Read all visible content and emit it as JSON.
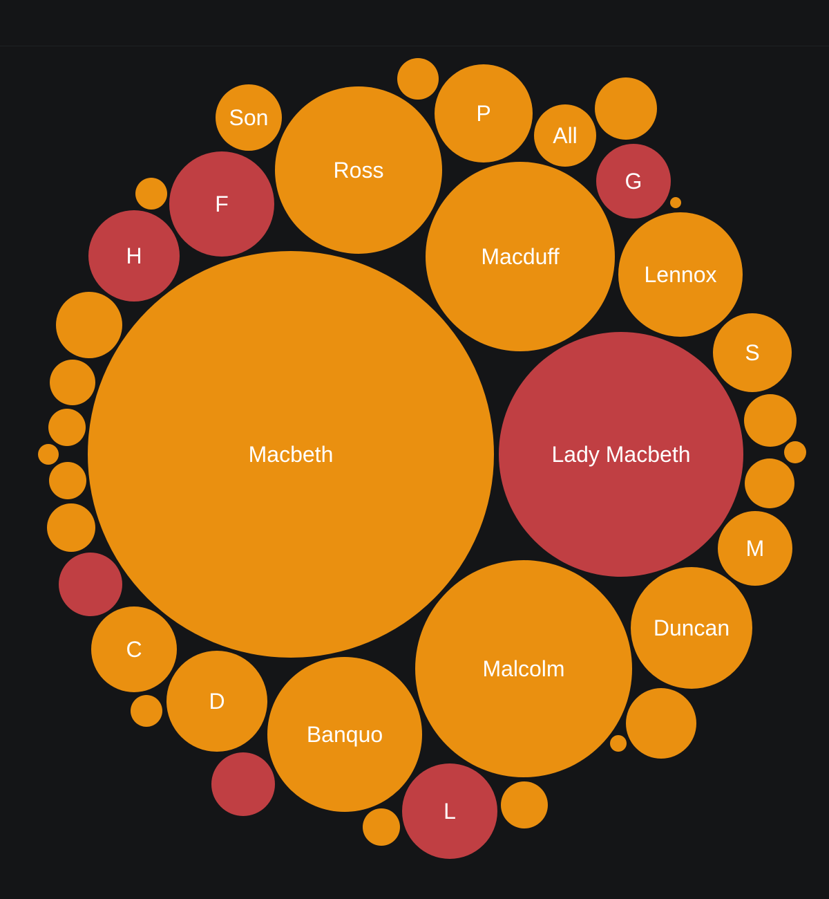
{
  "colors": {
    "background": "#141517",
    "female": "#c03f43",
    "male": "#ea9010",
    "label": "#ffffff"
  },
  "chart_data": {
    "type": "packed-bubble",
    "title": "",
    "items": [
      {
        "label": "Macbeth",
        "group": "male",
        "value": 100
      },
      {
        "label": "Lady Macbeth",
        "group": "female",
        "value": 36
      },
      {
        "label": "Malcolm",
        "group": "male",
        "value": 28
      },
      {
        "label": "Macduff",
        "group": "male",
        "value": 21.5
      },
      {
        "label": "Ross",
        "group": "male",
        "value": 16.7
      },
      {
        "label": "Banquo",
        "group": "male",
        "value": 14.5
      },
      {
        "label": "Lennox",
        "group": "male",
        "value": 9.4
      },
      {
        "label": "Duncan",
        "group": "male",
        "value": 8.8
      },
      {
        "label": "L",
        "group": "female",
        "value": 5.4
      },
      {
        "label": "F",
        "group": "female",
        "value": 6.5
      },
      {
        "label": "D",
        "group": "male",
        "value": 6.0
      },
      {
        "label": "P",
        "group": "male",
        "value": 5.8
      },
      {
        "label": "H",
        "group": "female",
        "value": 5.0
      },
      {
        "label": "C",
        "group": "male",
        "value": 4.4
      },
      {
        "label": "G",
        "group": "female",
        "value": 3.3
      },
      {
        "label": "S",
        "group": "male",
        "value": 3.7
      },
      {
        "label": "M",
        "group": "male",
        "value": 3.4
      },
      {
        "label": "Son",
        "group": "male",
        "value": 2.7
      },
      {
        "label": "All",
        "group": "male",
        "value": 2.3
      },
      {
        "label": "",
        "group": "male",
        "value": 2.9
      },
      {
        "label": "",
        "group": "male",
        "value": 3.0
      },
      {
        "label": "",
        "group": "female",
        "value": 2.4
      },
      {
        "label": "",
        "group": "female",
        "value": 2.4
      },
      {
        "label": "",
        "group": "male",
        "value": 2.6
      },
      {
        "label": "",
        "group": "male",
        "value": 2.3
      },
      {
        "label": "",
        "group": "male",
        "value": 2.2
      },
      {
        "label": "",
        "group": "male",
        "value": 1.6
      },
      {
        "label": "",
        "group": "male",
        "value": 1.5
      },
      {
        "label": "",
        "group": "male",
        "value": 1.5
      },
      {
        "label": "",
        "group": "male",
        "value": 1.3
      },
      {
        "label": "",
        "group": "male",
        "value": 1.3
      },
      {
        "label": "",
        "group": "male",
        "value": 1.2
      },
      {
        "label": "",
        "group": "male",
        "value": 1.0
      },
      {
        "label": "",
        "group": "male",
        "value": 0.9
      },
      {
        "label": "",
        "group": "male",
        "value": 0.7
      },
      {
        "label": "",
        "group": "male",
        "value": 0.6
      },
      {
        "label": "",
        "group": "male",
        "value": 0.6
      },
      {
        "label": "",
        "group": "male",
        "value": 0.5
      },
      {
        "label": "",
        "group": "male",
        "value": 0.2
      },
      {
        "label": "",
        "group": "male",
        "value": 0.2
      },
      {
        "label": "",
        "group": "male",
        "value": 0.1
      },
      {
        "label": "",
        "group": "male",
        "value": 0.1
      }
    ]
  }
}
